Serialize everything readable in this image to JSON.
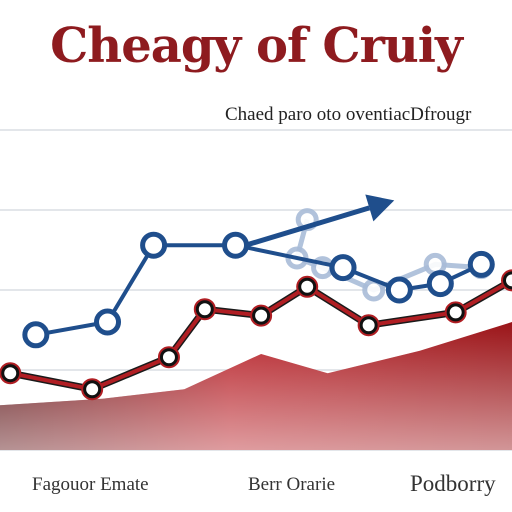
{
  "chart_data": {
    "type": "line",
    "title": "Cheagy of Cruiy",
    "subtitle": "Chaed paro oto oventiacDfrougr",
    "xlabel": "",
    "ylabel": "",
    "x_labels": [
      "Fagouor Emate",
      "Berr Orarie",
      "Podborry"
    ],
    "grid": true,
    "ylim": [
      0,
      100
    ],
    "xlim": [
      0,
      100
    ],
    "series": [
      {
        "role": "blue-line",
        "color": "#1f4e8c",
        "points": [
          [
            7,
            36
          ],
          [
            21,
            40
          ],
          [
            30,
            64
          ],
          [
            46,
            64
          ],
          [
            67,
            57
          ],
          [
            78,
            50
          ],
          [
            86,
            52
          ],
          [
            94,
            58
          ]
        ]
      },
      {
        "role": "blue-faded-line",
        "color": "#a9bcd8",
        "points": [
          [
            60,
            72
          ],
          [
            58,
            60
          ],
          [
            63,
            57
          ],
          [
            73,
            50
          ],
          [
            85,
            58
          ],
          [
            94,
            57
          ]
        ]
      },
      {
        "role": "red-line",
        "color": "#b01e23",
        "points": [
          [
            2,
            24
          ],
          [
            18,
            19
          ],
          [
            33,
            29
          ],
          [
            40,
            44
          ],
          [
            51,
            42
          ],
          [
            60,
            51
          ],
          [
            72,
            39
          ],
          [
            89,
            43
          ],
          [
            100,
            53
          ]
        ]
      },
      {
        "role": "red-area",
        "color": "#a5161a",
        "points": [
          [
            0,
            14
          ],
          [
            20,
            16
          ],
          [
            36,
            19
          ],
          [
            51,
            30
          ],
          [
            64,
            24
          ],
          [
            82,
            31
          ],
          [
            100,
            40
          ]
        ]
      }
    ],
    "arrow": {
      "color": "#1f4e8c",
      "from": [
        48,
        64
      ],
      "to": [
        77,
        78
      ]
    }
  }
}
